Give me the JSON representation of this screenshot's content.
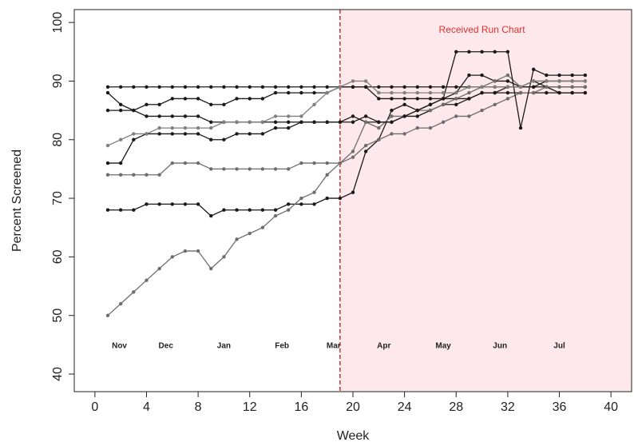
{
  "chart_data": {
    "type": "line",
    "xlabel": "Week",
    "ylabel": "Percent Screened",
    "annotation": "Received Run Chart",
    "annotation_color": "#e03030",
    "shade_from": 19,
    "shade_color": "#fde8ec",
    "divider_color": "#e03030",
    "month_labels": [
      "Nov",
      "Dec",
      "Jan",
      "Feb",
      "Mar",
      "Apr",
      "May",
      "Jun",
      "Jul"
    ],
    "month_x": [
      1.9,
      5.5,
      10,
      14.5,
      18.5,
      22.4,
      27,
      31.4,
      36
    ],
    "xlim": [
      -1.6,
      41.6
    ],
    "ylim": [
      37,
      102.2
    ],
    "xticks": [
      0,
      4,
      8,
      12,
      16,
      20,
      24,
      28,
      32,
      36,
      40
    ],
    "yticks": [
      40,
      50,
      60,
      70,
      80,
      90,
      100
    ],
    "x": [
      1,
      2,
      3,
      4,
      5,
      6,
      7,
      8,
      9,
      10,
      11,
      12,
      13,
      14,
      15,
      16,
      17,
      18,
      19,
      20,
      21,
      22,
      23,
      24,
      25,
      26,
      27,
      28,
      29,
      30,
      31,
      32,
      33,
      34,
      35,
      36,
      37,
      38
    ],
    "series": [
      {
        "color": "#1a1a1a",
        "values": [
          89,
          89,
          89,
          89,
          89,
          89,
          89,
          89,
          89,
          89,
          89,
          89,
          89,
          89,
          89,
          89,
          89,
          89,
          89,
          89,
          89,
          89,
          89,
          89,
          89,
          89,
          89,
          89,
          89,
          89,
          89,
          89,
          89,
          89,
          89,
          89,
          89,
          89
        ]
      },
      {
        "color": "#1a1a1a",
        "values": [
          88,
          86,
          85,
          84,
          84,
          84,
          84,
          84,
          83,
          83,
          83,
          83,
          83,
          83,
          83,
          83,
          83,
          83,
          83,
          84,
          83,
          83,
          83,
          84,
          84,
          85,
          86,
          86,
          87,
          88,
          88,
          88,
          88,
          88,
          88,
          88,
          88,
          88
        ]
      },
      {
        "color": "#1a1a1a",
        "values": [
          85,
          85,
          85,
          86,
          86,
          87,
          87,
          87,
          86,
          86,
          87,
          87,
          87,
          88,
          88,
          88,
          88,
          88,
          89,
          89,
          89,
          87,
          87,
          87,
          87,
          87,
          87,
          87,
          87,
          88,
          88,
          89,
          89,
          90,
          89,
          88,
          88,
          88
        ]
      },
      {
        "color": "#1a1a1a",
        "values": [
          68,
          68,
          68,
          69,
          69,
          69,
          69,
          69,
          67,
          68,
          68,
          68,
          68,
          68,
          69,
          69,
          69,
          70,
          70,
          71,
          78,
          80,
          85,
          86,
          85,
          86,
          87,
          88,
          91,
          91,
          90,
          90,
          89,
          89,
          90,
          90,
          90,
          90
        ]
      },
      {
        "color": "#6e6e6e",
        "values": [
          50,
          52,
          54,
          56,
          58,
          60,
          61,
          61,
          58,
          60,
          63,
          64,
          65,
          67,
          68,
          70,
          71,
          74,
          76,
          77,
          79,
          80,
          81,
          81,
          82,
          82,
          83,
          84,
          84,
          85,
          86,
          87,
          88,
          88,
          89,
          89,
          89,
          89
        ]
      },
      {
        "color": "#6e6e6e",
        "values": [
          74,
          74,
          74,
          74,
          74,
          76,
          76,
          76,
          75,
          75,
          75,
          75,
          75,
          75,
          75,
          76,
          76,
          76,
          76,
          78,
          83,
          82,
          84,
          84,
          85,
          85,
          86,
          87,
          88,
          89,
          90,
          91,
          89,
          90,
          90,
          90,
          90,
          90
        ]
      },
      {
        "color": "#1a1a1a",
        "values": [
          76,
          76,
          80,
          81,
          81,
          81,
          81,
          81,
          80,
          80,
          81,
          81,
          81,
          82,
          82,
          83,
          83,
          83,
          83,
          83,
          84,
          83,
          83,
          84,
          85,
          86,
          87,
          95,
          95,
          95,
          95,
          95,
          82,
          92,
          91,
          91,
          91,
          91
        ]
      },
      {
        "color": "#808080",
        "values": [
          79,
          80,
          81,
          81,
          82,
          82,
          82,
          82,
          82,
          83,
          83,
          83,
          83,
          84,
          84,
          84,
          86,
          88,
          89,
          90,
          90,
          88,
          88,
          88,
          88,
          88,
          88,
          88,
          89,
          89,
          89,
          89,
          89,
          90,
          90,
          90,
          90,
          90
        ]
      }
    ]
  }
}
